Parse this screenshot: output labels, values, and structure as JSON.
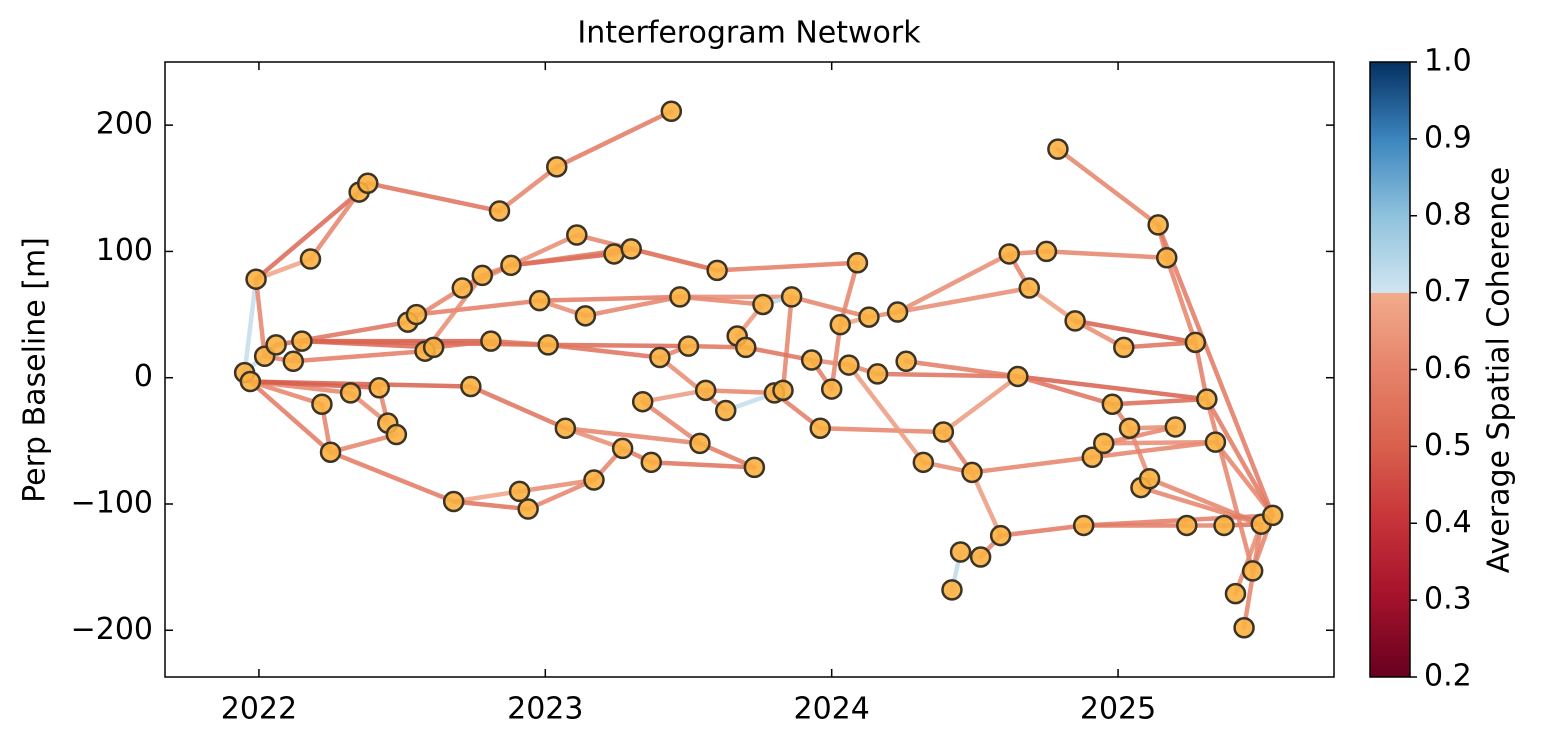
{
  "chart_data": {
    "type": "network",
    "title": "Interferogram Network",
    "ylabel": "Perp Baseline [m]",
    "colorbar_label": "Average Spatial Coherence",
    "xlim": [
      2021.672,
      2025.754
    ],
    "xticks": [
      2022,
      2023,
      2024,
      2025
    ],
    "ylim": [
      -237,
      250
    ],
    "yticks": [
      {
        "value": -200,
        "label": "−200"
      },
      {
        "value": -100,
        "label": "−100"
      },
      0,
      100,
      200
    ],
    "clim": [
      0.2,
      1.0
    ],
    "cticks": [
      0.2,
      0.3,
      0.4,
      0.5,
      0.6,
      0.7,
      0.8,
      0.9,
      {
        "value": 1.0,
        "label": "1.0"
      }
    ],
    "node_color": "#fbb040",
    "nodes": {
      "x": [
        2021.95,
        2021.97,
        2021.99,
        2022.02,
        2022.06,
        2022.12,
        2022.15,
        2022.18,
        2022.22,
        2022.25,
        2022.32,
        2022.35,
        2022.38,
        2022.42,
        2022.45,
        2022.48,
        2022.52,
        2022.55,
        2022.58,
        2022.61,
        2022.68,
        2022.71,
        2022.74,
        2022.78,
        2022.81,
        2022.84,
        2022.88,
        2022.91,
        2022.94,
        2022.98,
        2023.01,
        2023.04,
        2023.07,
        2023.11,
        2023.14,
        2023.17,
        2023.24,
        2023.27,
        2023.3,
        2023.34,
        2023.37,
        2023.4,
        2023.44,
        2023.47,
        2023.5,
        2023.54,
        2023.56,
        2023.6,
        2023.63,
        2023.67,
        2023.7,
        2023.73,
        2023.76,
        2023.8,
        2023.83,
        2023.86,
        2023.93,
        2023.96,
        2024.0,
        2024.03,
        2024.06,
        2024.09,
        2024.13,
        2024.16,
        2024.23,
        2024.26,
        2024.32,
        2024.39,
        2024.42,
        2024.45,
        2024.49,
        2024.52,
        2024.59,
        2024.62,
        2024.65,
        2024.69,
        2024.75,
        2024.79,
        2024.85,
        2024.88,
        2024.91,
        2024.95,
        2024.98,
        2025.02,
        2025.04,
        2025.08,
        2025.11,
        2025.14,
        2025.17,
        2025.2,
        2025.24,
        2025.27,
        2025.31,
        2025.34,
        2025.37,
        2025.41,
        2025.44,
        2025.47,
        2025.5,
        2025.54
      ],
      "y": [
        4,
        -3,
        78,
        17,
        26,
        13,
        29,
        94,
        -21,
        -59,
        -12,
        147,
        154,
        -8,
        -36,
        -45,
        44,
        50,
        21,
        24,
        -98,
        71,
        -7,
        81,
        29,
        132,
        89,
        -90,
        -104,
        61,
        26,
        167,
        -40,
        113,
        49,
        -81,
        98,
        -56,
        102,
        -19,
        -67,
        16,
        211,
        64,
        25,
        -52,
        -10,
        85,
        -26,
        33,
        24,
        -71,
        58,
        -12,
        -10,
        64,
        14,
        -40,
        -9,
        42,
        10,
        91,
        48,
        3,
        52,
        13,
        -67,
        -43,
        -168,
        -138,
        -75,
        -142,
        -125,
        98,
        1,
        71,
        100,
        181,
        45,
        -117,
        -63,
        -52,
        -21,
        24,
        -40,
        -87,
        -80,
        121,
        95,
        -39,
        -117,
        28,
        -17,
        -51,
        -117,
        -171,
        -198,
        -153,
        -116,
        -109
      ]
    },
    "edges": {
      "from": [
        2,
        2,
        2,
        2,
        0,
        0,
        1,
        1,
        1,
        1,
        1,
        3,
        3,
        4,
        4,
        5,
        5,
        6,
        6,
        6,
        7,
        11,
        12,
        25,
        31,
        26,
        8,
        9,
        9,
        10,
        13,
        14,
        16,
        16,
        17,
        18,
        18,
        19,
        21,
        21,
        23,
        26,
        26,
        33,
        36,
        38,
        47,
        29,
        29,
        34,
        24,
        30,
        30,
        22,
        32,
        32,
        20,
        20,
        27,
        28,
        35,
        37,
        40,
        45,
        39,
        39,
        41,
        41,
        44,
        43,
        43,
        49,
        49,
        52,
        48,
        46,
        53,
        54,
        50,
        55,
        56,
        58,
        59,
        59,
        56,
        60,
        62,
        57,
        63,
        65,
        64,
        67,
        66,
        66,
        67,
        68,
        69,
        70,
        71,
        72,
        70,
        73,
        73,
        75,
        76,
        77,
        78,
        78,
        74,
        82,
        82,
        83,
        84,
        85,
        85,
        81,
        80,
        81,
        84,
        79,
        90,
        94,
        93,
        92,
        87,
        88,
        91,
        92,
        96,
        95,
        97,
        86,
        87,
        79,
        74,
        64
      ],
      "to": [
        0,
        3,
        7,
        11,
        1,
        4,
        8,
        9,
        10,
        13,
        22,
        4,
        5,
        6,
        16,
        6,
        18,
        19,
        24,
        30,
        11,
        12,
        25,
        31,
        42,
        36,
        9,
        15,
        20,
        14,
        14,
        15,
        17,
        21,
        29,
        19,
        23,
        24,
        23,
        26,
        26,
        38,
        33,
        47,
        38,
        47,
        61,
        34,
        43,
        43,
        30,
        44,
        41,
        32,
        45,
        37,
        27,
        28,
        35,
        35,
        37,
        40,
        51,
        51,
        46,
        45,
        44,
        48,
        50,
        52,
        55,
        50,
        52,
        55,
        54,
        53,
        57,
        55,
        56,
        62,
        58,
        59,
        61,
        62,
        60,
        63,
        64,
        67,
        74,
        74,
        73,
        70,
        60,
        70,
        74,
        69,
        71,
        72,
        72,
        79,
        80,
        76,
        75,
        78,
        88,
        87,
        91,
        83,
        92,
        92,
        84,
        91,
        86,
        86,
        98,
        89,
        93,
        93,
        89,
        90,
        94,
        98,
        99,
        99,
        88,
        91,
        92,
        97,
        98,
        98,
        99,
        98,
        99,
        99,
        82,
        75
      ],
      "coherence": [
        0.72,
        0.6,
        0.68,
        0.52,
        0.6,
        0.72,
        0.6,
        0.57,
        0.6,
        0.5,
        0.5,
        0.62,
        0.6,
        0.72,
        0.55,
        0.6,
        0.58,
        0.52,
        0.5,
        0.52,
        0.6,
        0.6,
        0.55,
        0.6,
        0.57,
        0.5,
        0.6,
        0.6,
        0.57,
        0.62,
        0.6,
        0.72,
        0.7,
        0.6,
        0.58,
        0.6,
        0.62,
        0.55,
        0.6,
        0.62,
        0.6,
        0.55,
        0.62,
        0.6,
        0.6,
        0.57,
        0.58,
        0.62,
        0.58,
        0.6,
        0.55,
        0.53,
        0.55,
        0.55,
        0.6,
        0.62,
        0.68,
        0.55,
        0.62,
        0.6,
        0.6,
        0.58,
        0.55,
        0.57,
        0.66,
        0.6,
        0.6,
        0.62,
        0.56,
        0.6,
        0.62,
        0.72,
        0.65,
        0.73,
        0.72,
        0.6,
        0.58,
        0.6,
        0.55,
        0.6,
        0.58,
        0.6,
        0.6,
        0.68,
        0.62,
        0.6,
        0.62,
        0.6,
        0.55,
        0.58,
        0.62,
        0.6,
        0.66,
        0.62,
        0.66,
        0.73,
        0.72,
        0.66,
        0.6,
        0.57,
        0.6,
        0.6,
        0.6,
        0.67,
        0.6,
        0.6,
        0.5,
        0.62,
        0.5,
        0.53,
        0.6,
        0.55,
        0.62,
        0.68,
        0.6,
        0.6,
        0.6,
        0.62,
        0.62,
        0.57,
        0.6,
        0.55,
        0.6,
        0.57,
        0.6,
        0.6,
        0.58,
        0.6,
        0.6,
        0.62,
        0.6,
        0.6,
        0.57,
        0.58,
        0.55,
        0.62
      ]
    }
  }
}
